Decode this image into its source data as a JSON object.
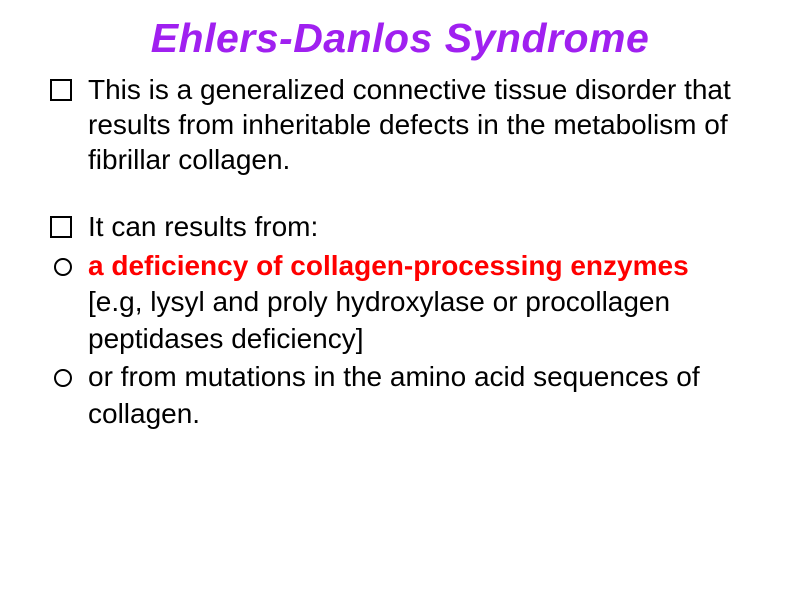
{
  "slide": {
    "title": "Ehlers-Danlos Syndrome",
    "title_color": "#a020f0",
    "title_fontsize": 41,
    "title_style": "italic bold",
    "body_fontsize": 28,
    "body_color": "#000000",
    "highlight_color": "#ff0000",
    "background_color": "#ffffff",
    "bullets": [
      {
        "type": "square",
        "text": "This is a generalized connective tissue disorder that results from inheritable defects in the metabolism of fibrillar collagen."
      },
      {
        "type": "square",
        "text": "It can results from:"
      }
    ],
    "sub_bullets": [
      {
        "type": "circle",
        "highlight": "a deficiency of collagen-processing enzymes",
        "rest": " [e.g, lysyl and proly hydroxylase or procollagen peptidases deficiency]"
      },
      {
        "type": "circle",
        "text": "or from mutations in the amino acid sequences of collagen."
      }
    ]
  }
}
